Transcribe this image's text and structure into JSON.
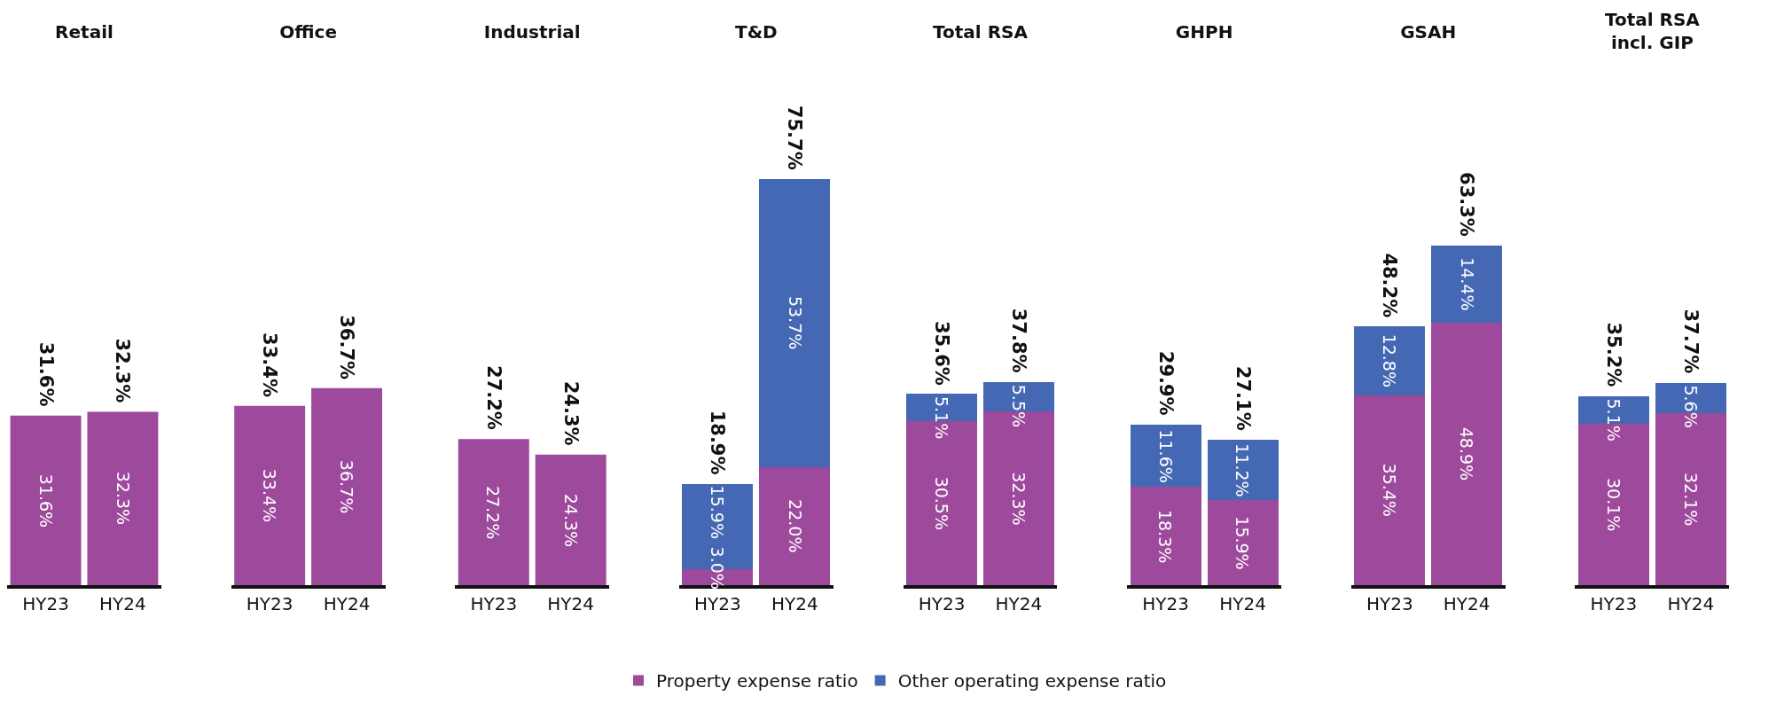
{
  "chart_data": [
    {
      "type": "bar",
      "title": "Retail",
      "categories": [
        "HY23",
        "HY24"
      ],
      "stacked": true,
      "series": [
        {
          "color": "#9e4a9c",
          "values": [
            31.6,
            32.3
          ],
          "value_labels": [
            "31.6%",
            "32.3%"
          ]
        }
      ],
      "totals": [
        "31.6%",
        "32.3%"
      ]
    },
    {
      "type": "bar",
      "title": "Office",
      "categories": [
        "HY23",
        "HY24"
      ],
      "stacked": true,
      "series": [
        {
          "color": "#9e4a9c",
          "values": [
            33.4,
            36.7
          ],
          "value_labels": [
            "33.4%",
            "36.7%"
          ]
        }
      ],
      "totals": [
        "33.4%",
        "36.7%"
      ]
    },
    {
      "type": "bar",
      "title": "Industrial",
      "categories": [
        "HY23",
        "HY24"
      ],
      "stacked": true,
      "series": [
        {
          "color": "#9e4a9c",
          "values": [
            27.2,
            24.3
          ],
          "value_labels": [
            "27.2%",
            "24.3%"
          ]
        }
      ],
      "totals": [
        "27.2%",
        "24.3%"
      ]
    },
    {
      "type": "bar",
      "title": "T&D",
      "categories": [
        "HY23",
        "HY24"
      ],
      "stacked": true,
      "legend": "bottom",
      "series": [
        {
          "name": "Property expense ratio",
          "color": "#9e4a9c",
          "values": [
            3.0,
            22.0
          ],
          "value_labels": [
            "3.0%",
            "22.0%"
          ]
        },
        {
          "name": "Other operating expense ratio",
          "color": "#4568b4",
          "values": [
            15.9,
            53.7
          ],
          "value_labels": [
            "15.9%",
            "53.7%"
          ]
        }
      ],
      "totals": [
        "18.9%",
        "75.7%"
      ]
    },
    {
      "type": "bar",
      "title": "Total RSA",
      "categories": [
        "HY23",
        "HY24"
      ],
      "stacked": true,
      "series": [
        {
          "color": "#9e4a9c",
          "values": [
            30.5,
            32.3
          ],
          "value_labels": [
            "30.5%",
            "32.3%"
          ]
        },
        {
          "color": "#4568b4",
          "values": [
            5.1,
            5.5
          ],
          "value_labels": [
            "5.1%",
            "5.5%"
          ]
        }
      ],
      "totals": [
        "35.6%",
        "37.8%"
      ]
    },
    {
      "type": "bar",
      "title": "GHPH",
      "categories": [
        "HY23",
        "HY24"
      ],
      "stacked": true,
      "series": [
        {
          "color": "#9e4a9c",
          "values": [
            18.3,
            15.9
          ],
          "value_labels": [
            "18.3%",
            "15.9%"
          ]
        },
        {
          "color": "#4568b4",
          "values": [
            11.6,
            11.2
          ],
          "value_labels": [
            "11.6%",
            "11.2%"
          ]
        }
      ],
      "totals": [
        "29.9%",
        "27.1%"
      ]
    },
    {
      "type": "bar",
      "title": "GSAH",
      "categories": [
        "HY23",
        "HY24"
      ],
      "stacked": true,
      "series": [
        {
          "color": "#9e4a9c",
          "values": [
            35.4,
            48.9
          ],
          "value_labels": [
            "35.4%",
            "48.9%"
          ]
        },
        {
          "color": "#4568b4",
          "values": [
            12.8,
            14.4
          ],
          "value_labels": [
            "12.8%",
            "14.4%"
          ]
        }
      ],
      "totals": [
        "48.2%",
        "63.3%"
      ]
    },
    {
      "type": "bar",
      "title": "Total RSA\nincl. GIP",
      "categories": [
        "HY23",
        "HY24"
      ],
      "stacked": true,
      "series": [
        {
          "color": "#9e4a9c",
          "values": [
            30.1,
            32.1
          ],
          "value_labels": [
            "30.1%",
            "32.1%"
          ]
        },
        {
          "color": "#4568b4",
          "values": [
            5.1,
            5.6
          ],
          "value_labels": [
            "5.1%",
            "5.6%"
          ]
        }
      ],
      "totals": [
        "35.2%",
        "37.7%"
      ]
    }
  ]
}
